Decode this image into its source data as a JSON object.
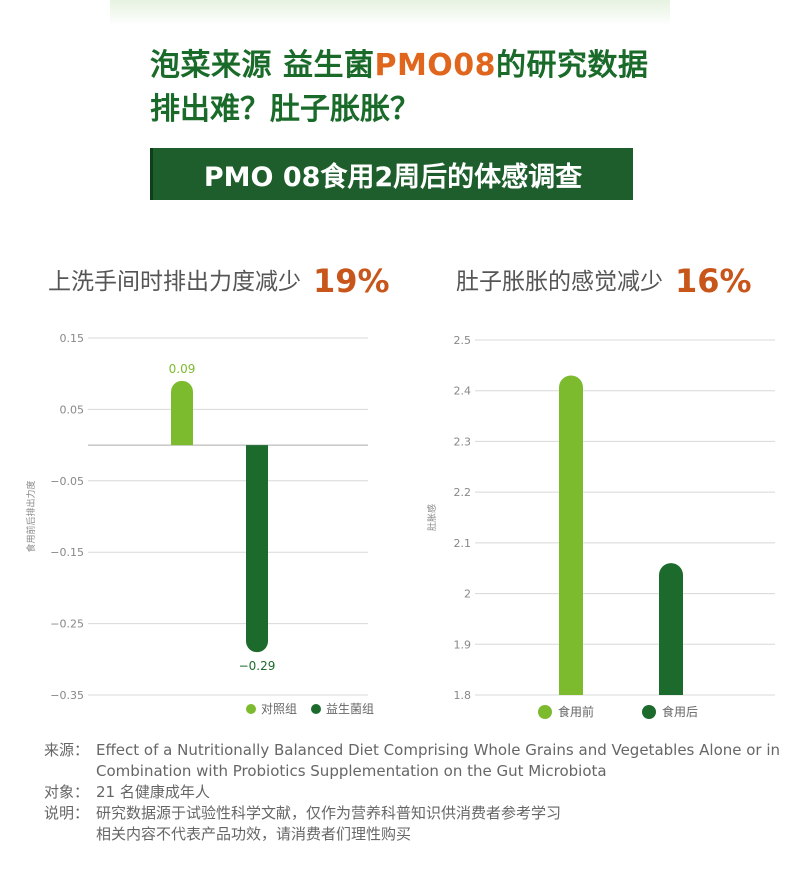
{
  "title_line1_prefix": "泡菜来源 益生菌",
  "title_line1_accent": "PMO08",
  "title_line1_suffix": "的研究数据",
  "title_line2": "排出难？肚子胀胀？",
  "banner": "PMO 08食用2周后的体感调查",
  "colors": {
    "light_green": "#7dbb2e",
    "dark_green": "#1c6b2c",
    "orange": "#c8561b",
    "title_green": "#1a6b2a"
  },
  "chart_data": [
    {
      "type": "bar",
      "heading": "上洗手间时排出力度减少",
      "heading_pct": "19%",
      "ylabel": "食用前后排出力度",
      "ylim": [
        -0.35,
        0.15
      ],
      "yticks": [
        0.15,
        0.05,
        -0.05,
        -0.15,
        -0.25,
        -0.35
      ],
      "ytick_labels": [
        "0.15",
        "0.05",
        "−0.05",
        "−0.15",
        "−0.25",
        "−0.35"
      ],
      "categories": [
        "对照组",
        "益生菌组"
      ],
      "values": [
        0.09,
        -0.29
      ],
      "data_labels": [
        "0.09",
        "−0.29"
      ],
      "legend": [
        "对照组",
        "益生菌组"
      ],
      "legend_position": "bottom-right",
      "grid": true
    },
    {
      "type": "bar",
      "heading": "肚子胀胀的感觉减少",
      "heading_pct": "16%",
      "ylabel": "肚胀感",
      "ylim": [
        1.8,
        2.5
      ],
      "yticks": [
        2.5,
        2.4,
        2.3,
        2.2,
        2.1,
        2,
        1.9,
        1.8
      ],
      "ytick_labels": [
        "2.5",
        "2.4",
        "2.3",
        "2.2",
        "2.1",
        "2",
        "1.9",
        "1.8"
      ],
      "categories": [
        "食用前",
        "食用后"
      ],
      "values": [
        2.43,
        2.06
      ],
      "legend": [
        "食用前",
        "食用后"
      ],
      "legend_position": "bottom",
      "grid": true
    }
  ],
  "footer": {
    "source_key": "来源：",
    "source_val": "Effect of a Nutritionally Balanced Diet Comprising Whole Grains and Vegetables Alone or in Combination with Probiotics  Supplementation on the Gut Microbiota",
    "subject_key": "对象：",
    "subject_val": "21 名健康成年人",
    "note_key": "说明：",
    "note_val1": "研究数据源于试验性科学文献，仅作为营养科普知识供消费者参考学习",
    "note_val2": "相关内容不代表产品功效，请消费者们理性购买"
  }
}
